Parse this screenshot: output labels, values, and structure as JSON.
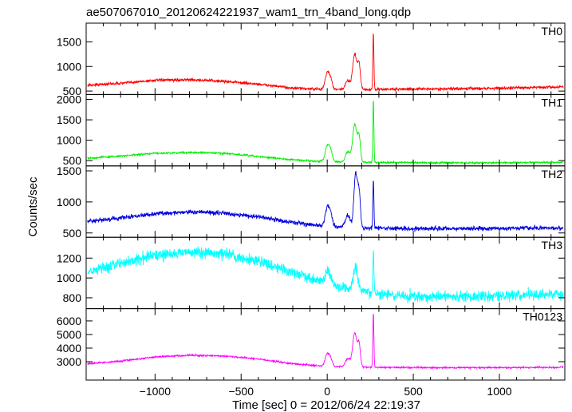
{
  "chart_data": {
    "type": "line",
    "title": "ae507067010_20120624221937_wam1_trn_4band_long.qdp",
    "xlabel": "Time [sec] 0 = 2012/06/24 22:19:37",
    "ylabel": "Counts/sec",
    "xlim": [
      -1400,
      1380
    ],
    "xticks": [
      -1000,
      -500,
      0,
      500,
      1000
    ],
    "xtick_labels": [
      "−1000",
      "−500",
      "0",
      "500",
      "1000"
    ],
    "series": [
      {
        "name": "TH0",
        "color": "#ff0000",
        "ylim": [
          430,
          1880
        ],
        "yticks": [
          500,
          1000,
          1500
        ],
        "noise": 28,
        "background": [
          [
            -1390,
            620
          ],
          [
            -1200,
            660
          ],
          [
            -1000,
            720
          ],
          [
            -800,
            730
          ],
          [
            -600,
            700
          ],
          [
            -400,
            640
          ],
          [
            -200,
            560
          ],
          [
            0,
            530
          ],
          [
            200,
            530
          ],
          [
            400,
            540
          ],
          [
            700,
            545
          ],
          [
            1000,
            560
          ],
          [
            1370,
            585
          ]
        ],
        "peaks": [
          [
            0,
            330,
            12
          ],
          [
            20,
            180,
            10
          ],
          [
            120,
            180,
            14
          ],
          [
            160,
            720,
            12
          ],
          [
            185,
            500,
            8
          ],
          [
            268,
            1150,
            3
          ]
        ]
      },
      {
        "name": "TH1",
        "color": "#00ee00",
        "ylim": [
          370,
          2120
        ],
        "yticks": [
          500,
          1000,
          1500,
          2000
        ],
        "noise": 22,
        "background": [
          [
            -1390,
            560
          ],
          [
            -1200,
            610
          ],
          [
            -1000,
            680
          ],
          [
            -800,
            700
          ],
          [
            -600,
            680
          ],
          [
            -400,
            600
          ],
          [
            -200,
            520
          ],
          [
            0,
            470
          ],
          [
            200,
            460
          ],
          [
            500,
            450
          ],
          [
            800,
            445
          ],
          [
            1100,
            450
          ],
          [
            1370,
            460
          ]
        ],
        "peaks": [
          [
            0,
            380,
            12
          ],
          [
            20,
            250,
            10
          ],
          [
            120,
            250,
            14
          ],
          [
            160,
            930,
            12
          ],
          [
            185,
            600,
            8
          ],
          [
            268,
            1550,
            3
          ]
        ]
      },
      {
        "name": "TH2",
        "color": "#0000dd",
        "ylim": [
          430,
          1580
        ],
        "yticks": [
          500,
          1000,
          1500
        ],
        "noise": 35,
        "background": [
          [
            -1390,
            680
          ],
          [
            -1200,
            740
          ],
          [
            -1000,
            810
          ],
          [
            -800,
            840
          ],
          [
            -600,
            820
          ],
          [
            -400,
            760
          ],
          [
            -200,
            670
          ],
          [
            0,
            600
          ],
          [
            200,
            580
          ],
          [
            500,
            570
          ],
          [
            800,
            570
          ],
          [
            1100,
            575
          ],
          [
            1370,
            580
          ]
        ],
        "peaks": [
          [
            0,
            300,
            12
          ],
          [
            20,
            180,
            10
          ],
          [
            120,
            200,
            14
          ],
          [
            165,
            850,
            10
          ],
          [
            185,
            550,
            8
          ],
          [
            268,
            800,
            3
          ]
        ]
      },
      {
        "name": "TH3",
        "color": "#00ffff",
        "ylim": [
          690,
          1410
        ],
        "yticks": [
          800,
          1000,
          1200
        ],
        "noise": 55,
        "background": [
          [
            -1390,
            1070
          ],
          [
            -1200,
            1150
          ],
          [
            -1000,
            1230
          ],
          [
            -800,
            1260
          ],
          [
            -600,
            1240
          ],
          [
            -400,
            1170
          ],
          [
            -200,
            1060
          ],
          [
            0,
            940
          ],
          [
            200,
            860
          ],
          [
            400,
            820
          ],
          [
            700,
            810
          ],
          [
            1000,
            820
          ],
          [
            1370,
            840
          ]
        ],
        "peaks": [
          [
            0,
            130,
            12
          ],
          [
            20,
            60,
            10
          ],
          [
            165,
            230,
            12
          ],
          [
            268,
            450,
            3
          ]
        ]
      },
      {
        "name": "TH0123",
        "color": "#ff00ff",
        "ylim": [
          1650,
          6900
        ],
        "yticks": [
          3000,
          4000,
          5000,
          6000
        ],
        "noise": 60,
        "background": [
          [
            -1390,
            2850
          ],
          [
            -1200,
            3050
          ],
          [
            -1000,
            3350
          ],
          [
            -800,
            3480
          ],
          [
            -600,
            3420
          ],
          [
            -400,
            3200
          ],
          [
            -200,
            2850
          ],
          [
            0,
            2650
          ],
          [
            200,
            2600
          ],
          [
            500,
            2570
          ],
          [
            800,
            2560
          ],
          [
            1100,
            2570
          ],
          [
            1370,
            2590
          ]
        ],
        "peaks": [
          [
            0,
            900,
            12
          ],
          [
            20,
            500,
            10
          ],
          [
            120,
            600,
            14
          ],
          [
            160,
            2500,
            12
          ],
          [
            185,
            1600,
            8
          ],
          [
            268,
            4000,
            3
          ]
        ]
      }
    ]
  }
}
